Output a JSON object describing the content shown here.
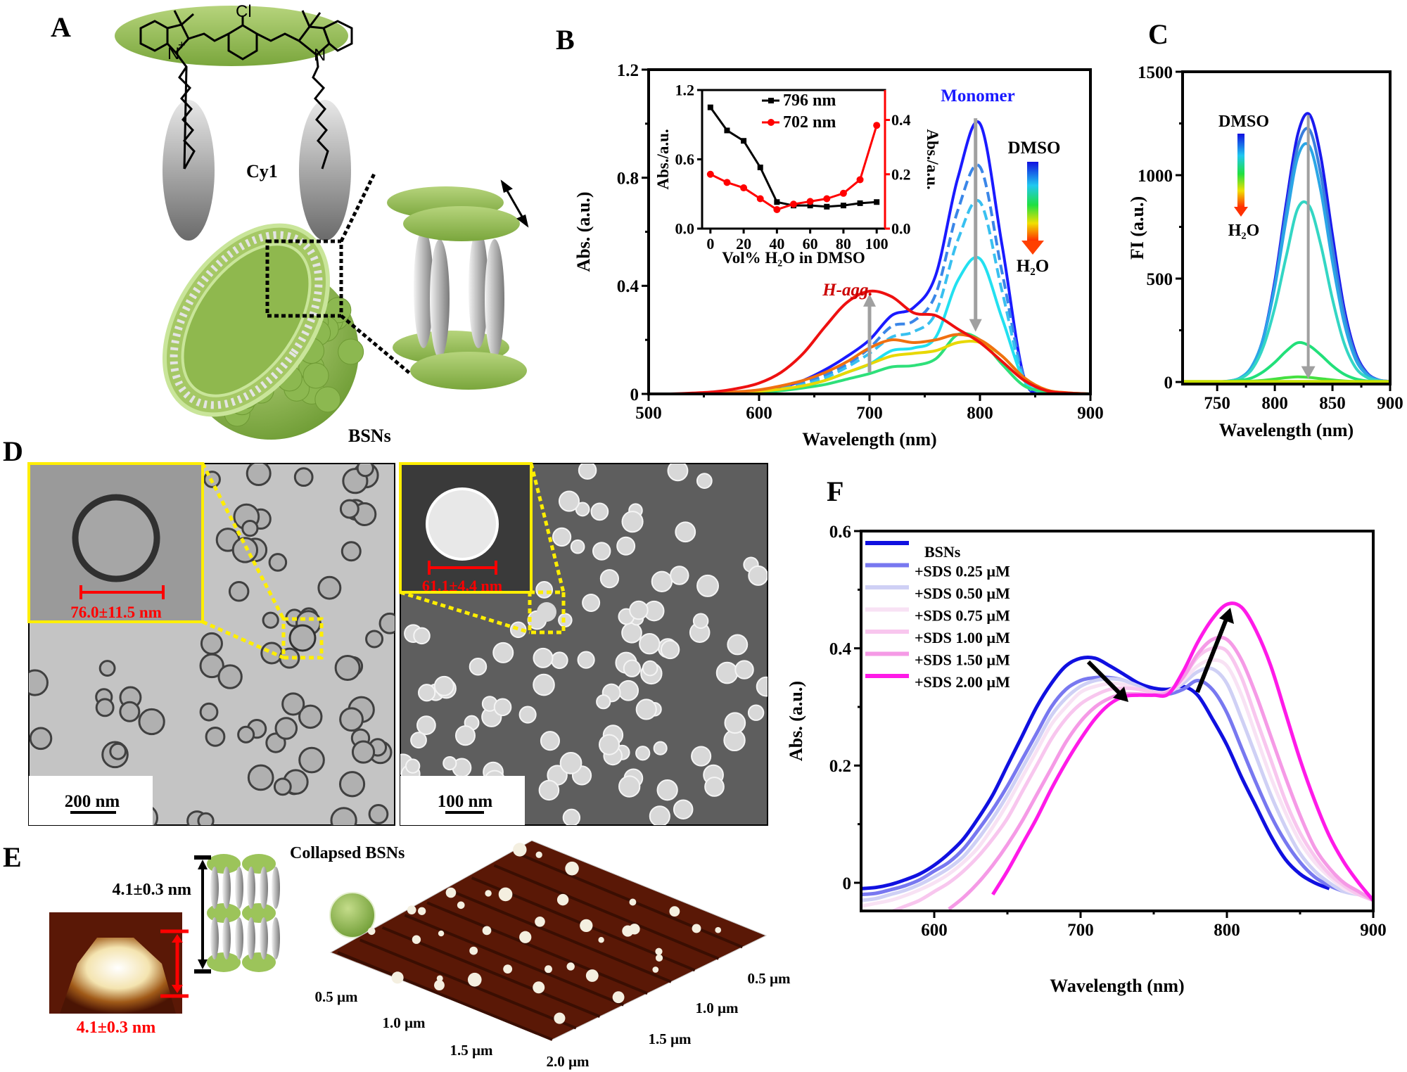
{
  "panels": {
    "A": {
      "label": "A",
      "molecule_label": "Cy1",
      "atom_cl": "Cl",
      "atom_n1": "N",
      "charge": "+",
      "atom_n2": "N",
      "assembly_label": "BSNs"
    },
    "B": {
      "label": "B",
      "annotations": {
        "monomer": "Monomer",
        "h_agg": "H-agg.",
        "solvent_top": "DMSO",
        "solvent_bottom": "H₂O"
      }
    },
    "C": {
      "label": "C",
      "annotations": {
        "solvent_top": "DMSO",
        "solvent_bottom": "H₂O"
      }
    },
    "D": {
      "label": "D",
      "tem": {
        "size_label": "76.0±11.5 nm",
        "scale_bar": "200 nm"
      },
      "sem": {
        "size_label": "61.1±4.4 nm",
        "scale_bar": "100 nm"
      }
    },
    "E": {
      "label": "E",
      "height_label": "4.1±0.3 nm",
      "afm_height_label": "4.1±0.3 nm",
      "collapsed_label": "Collapsed BSNs",
      "afm_axis_left": [
        "0.5 µm",
        "1.0 µm",
        "1.5 µm",
        "2.0 µm"
      ],
      "afm_axis_right": [
        "0.5 µm",
        "1.0 µm",
        "1.5 µm"
      ]
    },
    "F": {
      "label": "F"
    }
  },
  "colors": {
    "membrane_green": "#8dbb4c",
    "highlight_yellow": "#ffff00",
    "measure_red": "#ff0000",
    "afm_brown": "#5a1806",
    "monomer_blue": "#1a1aff",
    "hagg_red": "#cc0000"
  },
  "chart_data": [
    {
      "id": "B",
      "type": "line",
      "xlabel": "Wavelength (nm)",
      "ylabel": "Abs. (a.u.)",
      "xlim": [
        500,
        900
      ],
      "ylim": [
        0,
        1.2
      ],
      "xticks": [
        500,
        600,
        700,
        800,
        900
      ],
      "xtick_labels": [
        "500",
        "600",
        "700",
        "800",
        "900"
      ],
      "yticks": [
        0,
        0.4,
        0.8,
        1.2
      ],
      "ytick_labels": [
        "0",
        "0.4",
        "0.8",
        "1.2"
      ],
      "x": [
        500,
        520,
        540,
        560,
        580,
        600,
        620,
        640,
        660,
        680,
        700,
        720,
        740,
        760,
        780,
        800,
        820,
        840,
        860,
        880,
        900
      ],
      "series": [
        {
          "color": "#1a1aff",
          "style": "solid",
          "values": [
            0,
            0,
            0,
            0,
            0.005,
            0.012,
            0.025,
            0.05,
            0.09,
            0.14,
            0.2,
            0.29,
            0.32,
            0.44,
            0.8,
            1.0,
            0.55,
            0.06,
            0.01,
            0.003,
            0
          ]
        },
        {
          "color": "#3a86e8",
          "style": "dashed",
          "values": [
            0,
            0,
            0,
            0,
            0.004,
            0.01,
            0.02,
            0.04,
            0.07,
            0.11,
            0.17,
            0.25,
            0.27,
            0.37,
            0.68,
            0.84,
            0.45,
            0.06,
            0.01,
            0.003,
            0
          ]
        },
        {
          "color": "#38c0f0",
          "style": "dashed",
          "values": [
            0,
            0,
            0,
            0,
            0.004,
            0.009,
            0.018,
            0.035,
            0.06,
            0.1,
            0.15,
            0.21,
            0.23,
            0.3,
            0.57,
            0.71,
            0.38,
            0.05,
            0.01,
            0.003,
            0
          ]
        },
        {
          "color": "#22e0f0",
          "style": "solid",
          "values": [
            0,
            0,
            0,
            0,
            0.003,
            0.007,
            0.014,
            0.028,
            0.05,
            0.08,
            0.11,
            0.16,
            0.17,
            0.21,
            0.42,
            0.5,
            0.28,
            0.05,
            0.01,
            0.003,
            0
          ]
        },
        {
          "color": "#2ee07a",
          "style": "solid",
          "values": [
            0,
            0,
            0,
            0,
            0.003,
            0.006,
            0.012,
            0.022,
            0.035,
            0.055,
            0.075,
            0.1,
            0.105,
            0.13,
            0.22,
            0.2,
            0.11,
            0.03,
            0.008,
            0.002,
            0
          ]
        },
        {
          "color": "#e8d800",
          "style": "solid",
          "values": [
            0,
            0,
            0,
            0.002,
            0.005,
            0.01,
            0.018,
            0.03,
            0.05,
            0.08,
            0.11,
            0.14,
            0.15,
            0.16,
            0.19,
            0.19,
            0.14,
            0.06,
            0.015,
            0.004,
            0
          ]
        },
        {
          "color": "#f07010",
          "style": "solid",
          "values": [
            0,
            0,
            0,
            0.003,
            0.008,
            0.015,
            0.03,
            0.05,
            0.08,
            0.12,
            0.17,
            0.2,
            0.19,
            0.2,
            0.22,
            0.2,
            0.14,
            0.06,
            0.015,
            0.004,
            0
          ]
        },
        {
          "color": "#ee1010",
          "style": "solid",
          "values": [
            0,
            0,
            0.003,
            0.008,
            0.02,
            0.04,
            0.08,
            0.15,
            0.25,
            0.34,
            0.38,
            0.36,
            0.3,
            0.29,
            0.24,
            0.19,
            0.12,
            0.05,
            0.012,
            0.003,
            0
          ]
        }
      ]
    },
    {
      "id": "B-inset",
      "type": "line",
      "xlabel": "Vol% H₂O in DMSO",
      "ylabel": "Abs./a.u.",
      "y2label": "Abs./a.u.",
      "xlim": [
        -5,
        105
      ],
      "ylim": [
        0,
        1.2
      ],
      "y2lim": [
        0,
        0.51
      ],
      "xticks": [
        0,
        20,
        40,
        60,
        80,
        100
      ],
      "xtick_labels": [
        "0",
        "20",
        "40",
        "60",
        "80",
        "100"
      ],
      "yticks": [
        0,
        0.6,
        1.2
      ],
      "ytick_labels": [
        "0.0",
        "0.6",
        "1.2"
      ],
      "y2ticks": [
        0,
        0.2,
        0.4
      ],
      "y2tick_labels": [
        "0.0",
        "0.2",
        "0.4"
      ],
      "legend": "top-right",
      "x": [
        0,
        10,
        20,
        30,
        40,
        50,
        60,
        70,
        80,
        90,
        100
      ],
      "series": [
        {
          "name": "796 nm",
          "color": "#000000",
          "axis": "left",
          "marker": "square",
          "values": [
            1.05,
            0.85,
            0.76,
            0.53,
            0.23,
            0.2,
            0.2,
            0.19,
            0.2,
            0.22,
            0.23
          ]
        },
        {
          "name": "702 nm",
          "color": "#ff0000",
          "axis": "right",
          "marker": "circle",
          "values": [
            0.2,
            0.17,
            0.15,
            0.11,
            0.07,
            0.09,
            0.1,
            0.11,
            0.13,
            0.18,
            0.38
          ]
        }
      ]
    },
    {
      "id": "C",
      "type": "line",
      "xlabel": "Wavelength (nm)",
      "ylabel": "FI (a.u.)",
      "xlim": [
        720,
        900
      ],
      "ylim": [
        -10,
        1500
      ],
      "xticks": [
        750,
        800,
        850,
        900
      ],
      "xtick_labels": [
        "750",
        "800",
        "850",
        "900"
      ],
      "yticks": [
        0,
        500,
        1000,
        1500
      ],
      "ytick_labels": [
        "0",
        "500",
        "1000",
        "1500"
      ],
      "x": [
        720,
        730,
        740,
        750,
        760,
        770,
        780,
        790,
        800,
        810,
        820,
        830,
        840,
        850,
        860,
        870,
        880,
        890,
        900
      ],
      "series": [
        {
          "color": "#1a1aee",
          "values": [
            0,
            0,
            0,
            1,
            4,
            20,
            73,
            213,
            488,
            867,
            1200,
            1294,
            1086,
            710,
            361,
            143,
            44,
            10,
            3
          ]
        },
        {
          "color": "#3a7fdc",
          "values": [
            0,
            0,
            0,
            1,
            4,
            19,
            70,
            210,
            470,
            830,
            1140,
            1220,
            1000,
            650,
            330,
            130,
            40,
            10,
            3
          ]
        },
        {
          "color": "#2aa6e6",
          "values": [
            0,
            0,
            0,
            1,
            5,
            20,
            75,
            210,
            460,
            790,
            1090,
            1140,
            920,
            580,
            290,
            110,
            35,
            9,
            2
          ]
        },
        {
          "color": "#33d6c4",
          "values": [
            0,
            0,
            0,
            1,
            4,
            17,
            60,
            170,
            360,
            610,
            840,
            850,
            660,
            400,
            190,
            70,
            22,
            6,
            1
          ]
        },
        {
          "color": "#22e07a",
          "values": [
            0,
            0,
            0,
            1,
            3,
            8,
            20,
            50,
            95,
            150,
            190,
            175,
            130,
            78,
            38,
            15,
            5,
            1,
            0
          ]
        },
        {
          "color": "#44e040",
          "values": [
            0,
            0,
            0,
            0,
            1,
            2,
            4,
            8,
            14,
            21,
            25,
            22,
            16,
            10,
            5,
            2,
            1,
            0,
            0
          ]
        },
        {
          "color": "#c8e000",
          "values": [
            3,
            3,
            3,
            3,
            3,
            3,
            3,
            3,
            3,
            3,
            3,
            3,
            3,
            3,
            3,
            3,
            3,
            3,
            3
          ]
        }
      ]
    },
    {
      "id": "F",
      "type": "line",
      "xlabel": "Wavelength (nm)",
      "ylabel": "Abs. (a.u.)",
      "xlim": [
        550,
        900
      ],
      "ylim": [
        -0.048,
        0.6
      ],
      "xticks": [
        600,
        700,
        800,
        900
      ],
      "xtick_labels": [
        "600",
        "700",
        "800",
        "900"
      ],
      "yticks": [
        0,
        0.2,
        0.4,
        0.6
      ],
      "ytick_labels": [
        "0",
        "0.2",
        "0.4",
        "0.6"
      ],
      "legend": "top-left",
      "x": [
        550,
        560,
        570,
        580,
        590,
        600,
        610,
        620,
        630,
        640,
        650,
        660,
        670,
        680,
        690,
        700,
        710,
        720,
        730,
        740,
        750,
        760,
        770,
        780,
        790,
        800,
        810,
        820,
        830,
        840,
        850,
        860,
        870,
        880,
        890,
        900
      ],
      "series": [
        {
          "name": "BSNs",
          "color": "#1010e0",
          "values": [
            -0.01,
            -0.008,
            -0.003,
            0.005,
            0.015,
            0.03,
            0.05,
            0.075,
            0.11,
            0.15,
            0.2,
            0.25,
            0.3,
            0.34,
            0.37,
            0.383,
            0.383,
            0.37,
            0.355,
            0.34,
            0.332,
            0.33,
            0.335,
            0.32,
            0.28,
            0.235,
            0.18,
            0.13,
            0.08,
            0.04,
            0.015,
            0.0,
            -0.01,
            null,
            null,
            null
          ]
        },
        {
          "name": "+SDS 0.25 µM",
          "color": "#7878f0",
          "values": [
            -0.02,
            -0.018,
            -0.012,
            -0.005,
            0.005,
            0.02,
            0.035,
            0.058,
            0.09,
            0.125,
            0.165,
            0.21,
            0.255,
            0.3,
            0.33,
            0.345,
            0.35,
            0.35,
            0.345,
            0.335,
            0.325,
            0.322,
            0.33,
            0.345,
            0.33,
            0.29,
            0.23,
            0.17,
            0.115,
            0.07,
            0.035,
            0.01,
            -0.005,
            -0.015,
            null,
            null
          ]
        },
        {
          "name": "+SDS 0.50 µM",
          "color": "#cfd0f5",
          "values": [
            -0.03,
            -0.027,
            -0.02,
            -0.013,
            -0.003,
            0.01,
            0.025,
            0.045,
            0.075,
            0.11,
            0.15,
            0.195,
            0.24,
            0.285,
            0.315,
            0.335,
            0.345,
            0.348,
            0.345,
            0.335,
            0.325,
            0.325,
            0.34,
            0.36,
            0.365,
            0.34,
            0.28,
            0.215,
            0.15,
            0.095,
            0.05,
            0.02,
            0.0,
            -0.015,
            -0.02,
            null
          ]
        },
        {
          "name": "+SDS 0.75 µM",
          "color": "#f8e2f4",
          "values": [
            -0.04,
            -0.035,
            -0.03,
            -0.022,
            -0.012,
            0.0,
            0.015,
            0.035,
            0.06,
            0.095,
            0.135,
            0.18,
            0.225,
            0.27,
            0.3,
            0.325,
            0.335,
            0.34,
            0.338,
            0.33,
            0.325,
            0.325,
            0.345,
            0.37,
            0.38,
            0.37,
            0.32,
            0.25,
            0.18,
            0.12,
            0.07,
            0.035,
            0.01,
            -0.01,
            -0.02,
            -0.03
          ]
        },
        {
          "name": "+SDS 1.00 µM",
          "color": "#f8c6ee",
          "values": [
            null,
            null,
            -0.05,
            -0.04,
            -0.03,
            -0.015,
            0.0,
            0.02,
            0.045,
            0.075,
            0.11,
            0.155,
            0.2,
            0.245,
            0.28,
            0.305,
            0.32,
            0.33,
            0.332,
            0.33,
            0.325,
            0.327,
            0.35,
            0.385,
            0.4,
            0.395,
            0.35,
            0.28,
            0.21,
            0.14,
            0.085,
            0.045,
            0.015,
            -0.005,
            -0.02,
            -0.03
          ]
        },
        {
          "name": "+SDS 1.50 µM",
          "color": "#f59ae6",
          "values": [
            null,
            null,
            null,
            null,
            null,
            null,
            -0.045,
            -0.025,
            0.0,
            0.03,
            0.065,
            0.105,
            0.15,
            0.195,
            0.24,
            0.275,
            0.3,
            0.315,
            0.322,
            0.322,
            0.32,
            0.325,
            0.35,
            0.39,
            0.415,
            0.415,
            0.38,
            0.32,
            0.25,
            0.18,
            0.115,
            0.06,
            0.025,
            0.0,
            -0.015,
            -0.03
          ]
        },
        {
          "name": "+SDS 2.00 µM",
          "color": "#ff1ae8",
          "values": [
            null,
            null,
            null,
            null,
            null,
            null,
            null,
            null,
            null,
            -0.02,
            0.02,
            0.065,
            0.11,
            0.16,
            0.205,
            0.245,
            0.28,
            0.305,
            0.318,
            0.32,
            0.32,
            0.322,
            0.36,
            0.41,
            0.45,
            0.475,
            0.47,
            0.43,
            0.37,
            0.29,
            0.21,
            0.14,
            0.08,
            0.035,
            0.0,
            -0.03
          ]
        }
      ]
    }
  ]
}
